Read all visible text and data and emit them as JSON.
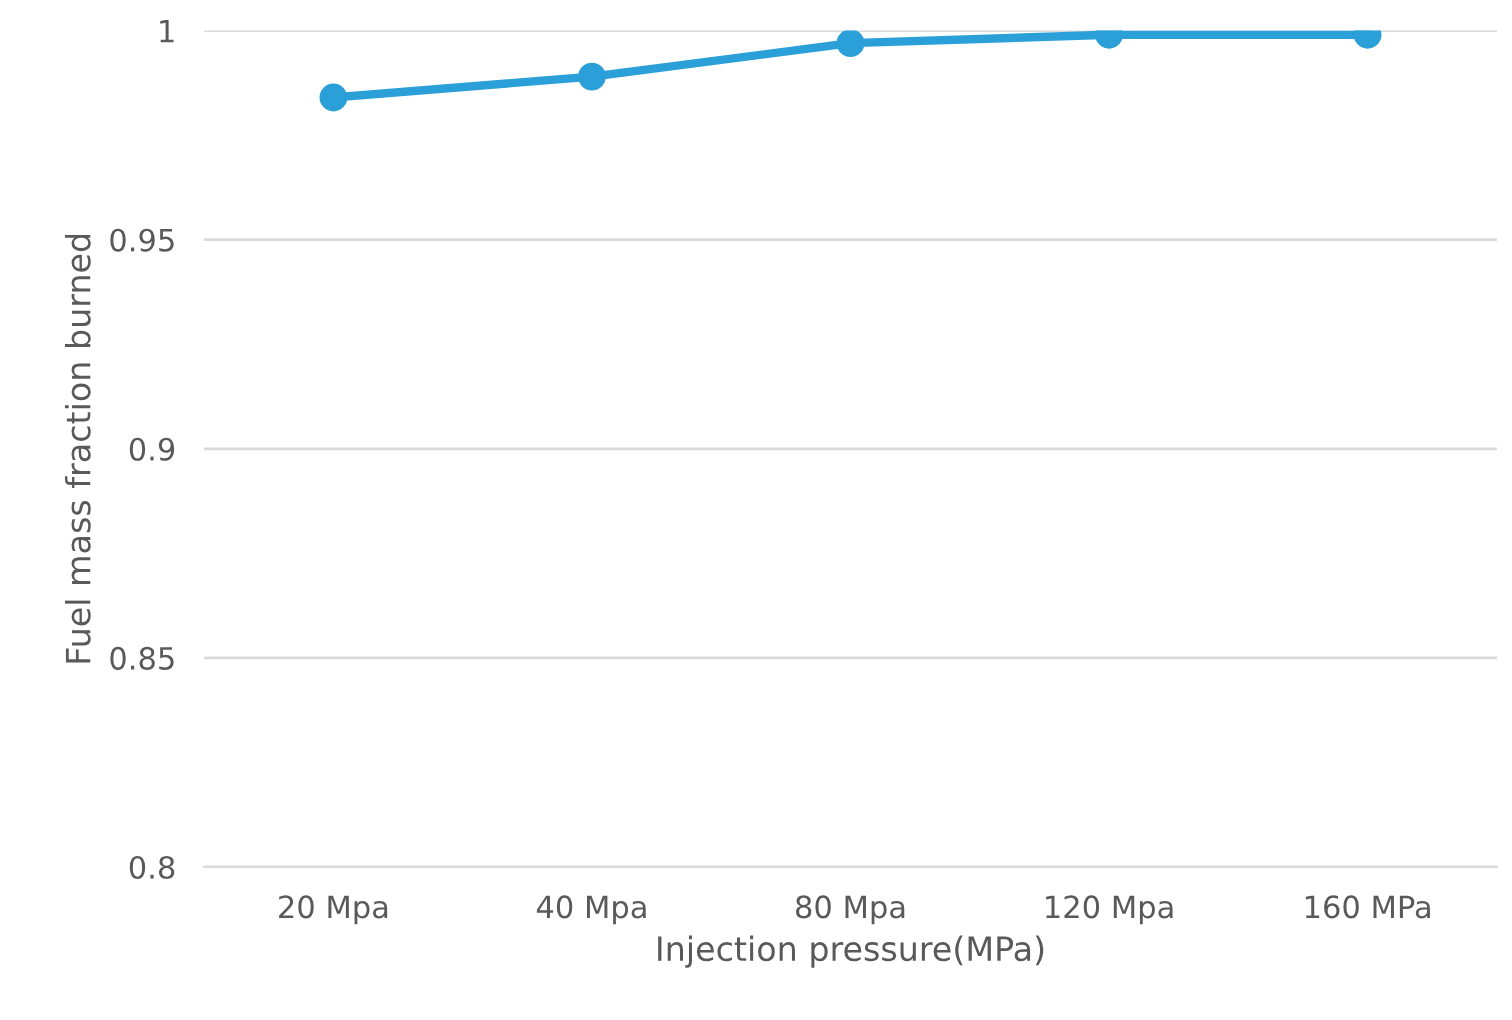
{
  "chart_data": {
    "type": "line",
    "xlabel": "Injection pressure(MPa)",
    "ylabel": "Fuel mass fraction burned",
    "categories": [
      "20 Mpa",
      "40 Mpa",
      "80 Mpa",
      "120 Mpa",
      "160 MPa"
    ],
    "series": [
      {
        "color": "#2a9fd8",
        "values": [
          0.984,
          0.989,
          0.997,
          0.999,
          0.999
        ]
      }
    ],
    "ylim": [
      0.8,
      1
    ],
    "yticks": [
      0.8,
      0.85,
      0.9,
      0.95,
      1
    ],
    "grid": "y",
    "marker": "circle",
    "line_style": "solid",
    "legend": false
  }
}
